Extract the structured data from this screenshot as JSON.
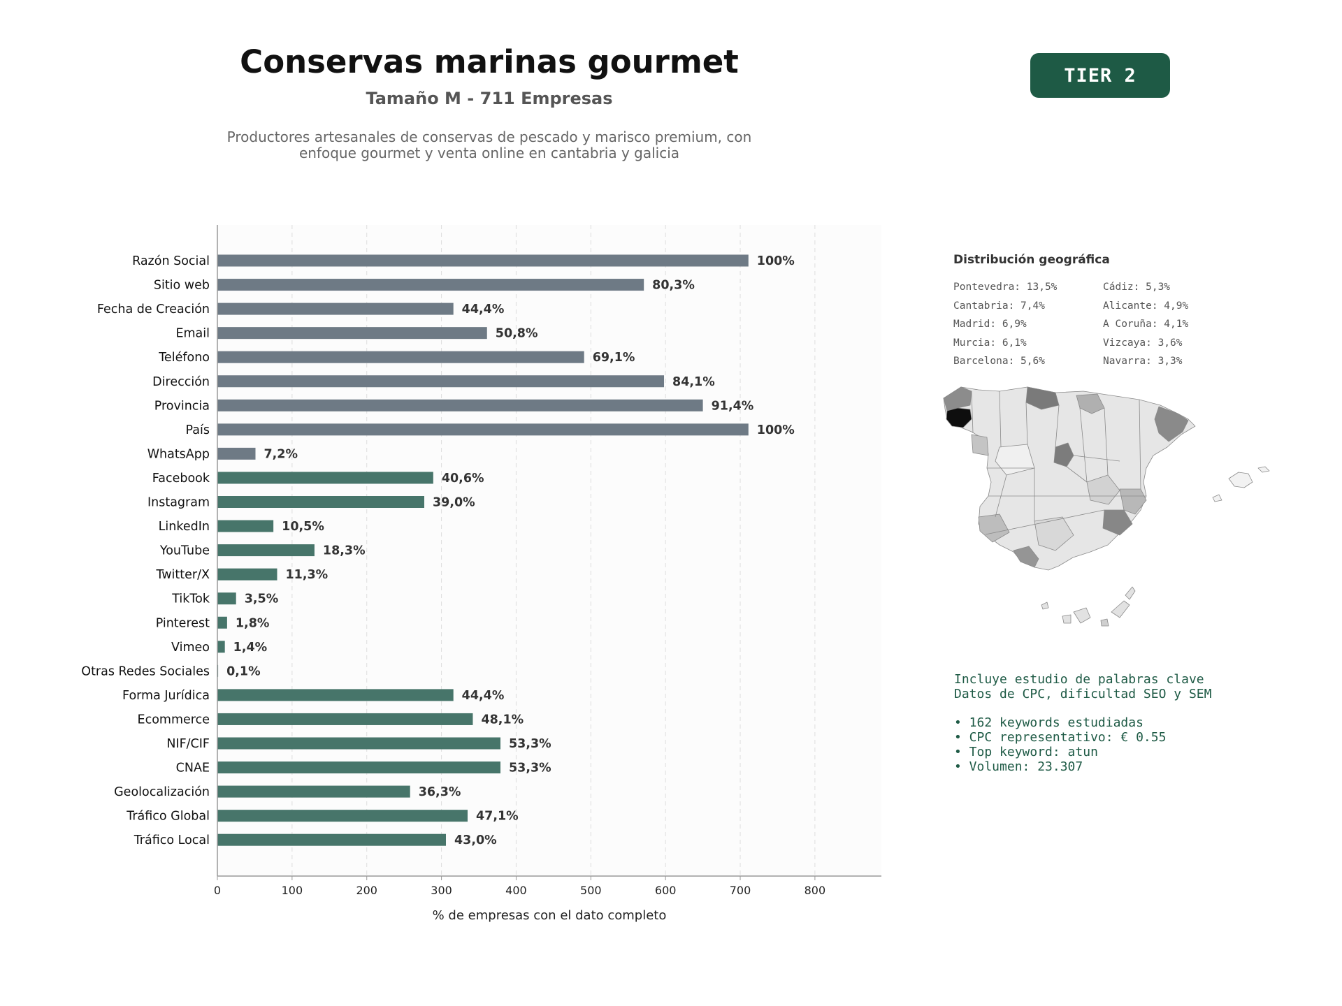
{
  "header": {
    "title": "Conservas marinas gourmet",
    "subtitle": "Tamaño M - 711 Empresas",
    "description_lines": [
      "Productores artesanales de conservas de pescado y marisco premium, con",
      "enfoque gourmet y venta online en cantabria y galicia"
    ],
    "tier_label": "TIER 2"
  },
  "chart_data": {
    "type": "bar",
    "orientation": "horizontal",
    "categories": [
      "Razón Social",
      "Sitio web",
      "Fecha de Creación",
      "Email",
      "Teléfono",
      "Dirección",
      "Provincia",
      "País",
      "WhatsApp",
      "Facebook",
      "Instagram",
      "LinkedIn",
      "YouTube",
      "Twitter/X",
      "TikTok",
      "Pinterest",
      "Vimeo",
      "Otras Redes Sociales",
      "Forma Jurídica",
      "Ecommerce",
      "NIF/CIF",
      "CNAE",
      "Geolocalización",
      "Tráfico Global",
      "Tráfico Local"
    ],
    "values": [
      711,
      571,
      316,
      361,
      491,
      598,
      650,
      711,
      51,
      289,
      277,
      75,
      130,
      80,
      25,
      13,
      10,
      1,
      316,
      342,
      379,
      379,
      258,
      335,
      306
    ],
    "value_labels": [
      "100%",
      "80,3%",
      "44,4%",
      "50,8%",
      "69,1%",
      "84,1%",
      "91,4%",
      "100%",
      "7,2%",
      "40,6%",
      "39,0%",
      "10,5%",
      "18,3%",
      "11,3%",
      "3,5%",
      "1,8%",
      "1,4%",
      "0,1%",
      "44,4%",
      "48,1%",
      "53,3%",
      "53,3%",
      "36,3%",
      "47,1%",
      "43,0%"
    ],
    "bar_colors": [
      "#6e7a85",
      "#6e7a85",
      "#6e7a85",
      "#6e7a85",
      "#6e7a85",
      "#6e7a85",
      "#6e7a85",
      "#6e7a85",
      "#6e7a85",
      "#47756a",
      "#47756a",
      "#47756a",
      "#47756a",
      "#47756a",
      "#47756a",
      "#47756a",
      "#47756a",
      "#47756a",
      "#47756a",
      "#47756a",
      "#47756a",
      "#47756a",
      "#47756a",
      "#47756a",
      "#47756a"
    ],
    "xlabel": "% de empresas con el dato completo",
    "xlim": [
      0,
      889
    ],
    "xticks": [
      0,
      100,
      200,
      300,
      400,
      500,
      600,
      700,
      800
    ],
    "grid": "vertical dashed"
  },
  "geo": {
    "title": "Distribución geográfica",
    "col1": [
      "Pontevedra: 13,5%",
      "Cantabria: 7,4%",
      "Madrid: 6,9%",
      "Murcia: 6,1%",
      "Barcelona: 5,6%"
    ],
    "col2": [
      "Cádiz: 5,3%",
      "Alicante: 4,9%",
      "A Coruña: 4,1%",
      "Vizcaya: 3,6%",
      "Navarra: 3,3%"
    ]
  },
  "keywords": {
    "intro_lines": [
      "Incluye estudio de palabras clave",
      "Datos de CPC, dificultad SEO y SEM"
    ],
    "bullets": [
      "• 162 keywords estudiadas",
      "• CPC representativo: € 0.55",
      "• Top keyword: atun",
      "• Volumen: 23.307"
    ]
  },
  "colors": {
    "brand": "#1e5a45",
    "bar_gray": "#6e7a85",
    "bar_green": "#47756a"
  }
}
